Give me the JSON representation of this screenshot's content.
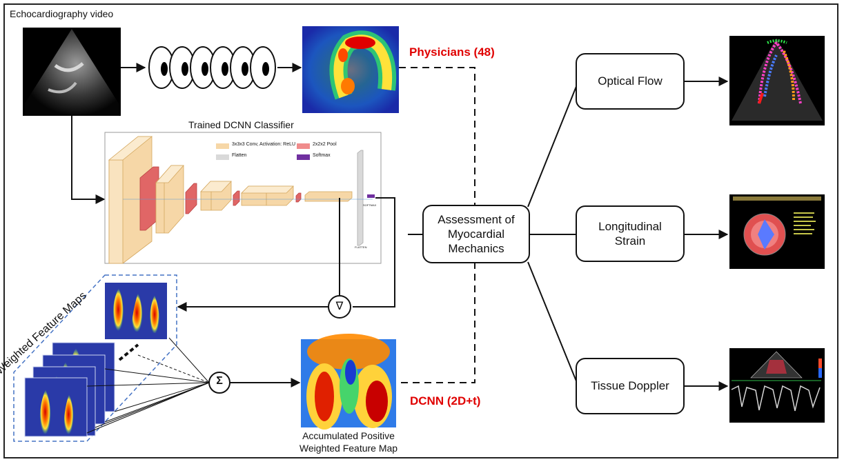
{
  "input": {
    "title": "Echocardiography video"
  },
  "physicians": {
    "label": "Physicians (48)"
  },
  "classifier": {
    "title": "Trained DCNN Classifier",
    "legend": {
      "conv": "3x3x3 Conv, Activation: ReLU",
      "pool": "2x2x2 Pool",
      "flatten": "Flatten",
      "softmax": "Softmax"
    },
    "layer_labels": {
      "flatten": "FLATTEN",
      "softmax": "SOFTMAX"
    },
    "colors": {
      "conv": "#f6d7a7",
      "pool": "#e06666",
      "flatten": "#d9d9d9",
      "softmax": "#7030a0"
    }
  },
  "gradient_symbol": "∇",
  "sum_symbol": "Σ",
  "weighted_maps": {
    "label": "Weighted Feature Maps"
  },
  "accumulated": {
    "line1": "Accumulated Positive",
    "line2": "Weighted Feature Map"
  },
  "dcnn": {
    "label": "DCNN (2D+t)"
  },
  "assessment": {
    "line1": "Assessment of",
    "line2": "Myocardial",
    "line3": "Mechanics"
  },
  "outputs": {
    "optical_flow": "Optical Flow",
    "strain_line1": "Longitudinal",
    "strain_line2": "Strain",
    "tissue_doppler": "Tissue Doppler"
  },
  "colors": {
    "highlight": "#e00000",
    "dashed_box": "#4472c4"
  }
}
